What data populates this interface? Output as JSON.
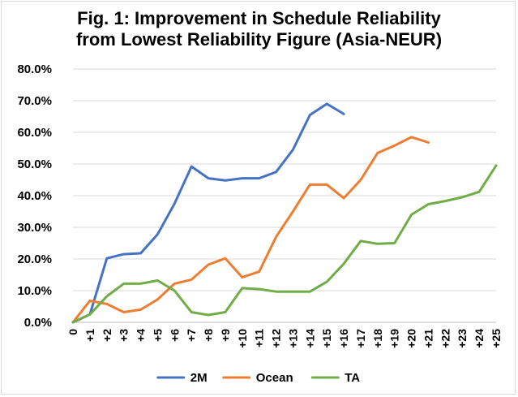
{
  "chart_data": {
    "type": "line",
    "title_line1": "Fig. 1: Improvement in Schedule Reliability",
    "title_line2": "from Lowest Reliability Figure (Asia-NEUR)",
    "xlabel": "",
    "ylabel": "",
    "ylim": [
      0,
      80
    ],
    "y_ticks": [
      "0.0%",
      "10.0%",
      "20.0%",
      "30.0%",
      "40.0%",
      "50.0%",
      "60.0%",
      "70.0%",
      "80.0%"
    ],
    "categories": [
      "0",
      "+1",
      "+2",
      "+3",
      "+4",
      "+5",
      "+6",
      "+7",
      "+8",
      "+9",
      "+10",
      "+11",
      "+12",
      "+13",
      "+14",
      "+15",
      "+16",
      "+17",
      "+18",
      "+19",
      "+20",
      "+21",
      "+22",
      "+23",
      "+24",
      "+25"
    ],
    "legend_position": "bottom",
    "series": [
      {
        "name": "2M",
        "color": "#4472c4",
        "values": [
          0,
          2.5,
          20.2,
          21.5,
          21.8,
          27.8,
          37.5,
          49.2,
          45.5,
          44.8,
          45.5,
          45.5,
          47.5,
          54.5,
          65.5,
          69.0,
          65.8,
          null,
          null,
          null,
          null,
          null,
          null,
          null,
          null,
          null
        ]
      },
      {
        "name": "Ocean",
        "color": "#ed7d31",
        "values": [
          0,
          6.8,
          5.8,
          3.2,
          4.0,
          7.2,
          12.2,
          13.5,
          18.2,
          20.2,
          14.2,
          16.0,
          27.0,
          35.0,
          43.5,
          43.5,
          39.2,
          45.0,
          53.5,
          55.8,
          58.5,
          56.8,
          null,
          null,
          null,
          null
        ]
      },
      {
        "name": "TA",
        "color": "#70ad47",
        "values": [
          0,
          2.5,
          8.2,
          12.2,
          12.2,
          13.2,
          10.0,
          3.2,
          2.3,
          3.2,
          10.8,
          10.5,
          9.7,
          9.7,
          9.7,
          12.8,
          18.5,
          25.7,
          24.8,
          25.0,
          34.0,
          37.3,
          38.3,
          39.5,
          41.2,
          49.5
        ]
      }
    ]
  }
}
